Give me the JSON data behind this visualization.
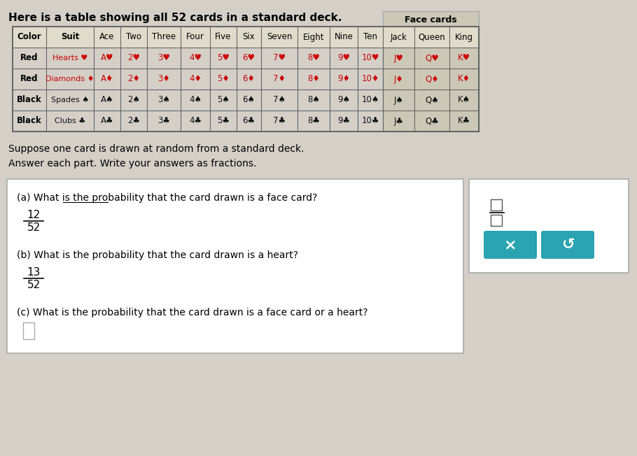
{
  "title": "Here is a table showing all 52 cards in a standard deck.",
  "bg_color": "#d4d0c8",
  "table_bg": "#e8e4dc",
  "face_cards_header": "Face cards",
  "col_header": [
    "Color",
    "Suit",
    "Ace",
    "Two",
    "Three",
    "Four",
    "Five",
    "Six",
    "Seven",
    "Eight",
    "Nine",
    "Ten",
    "Jack",
    "Queen",
    "King"
  ],
  "rows": [
    {
      "color": "Red",
      "suit": "Hearts",
      "suit_symbol": "♥",
      "cards": [
        "A",
        "2",
        "3",
        "4",
        "5",
        "6",
        "7",
        "8",
        "9",
        "10",
        "J",
        "Q",
        "K"
      ],
      "text_color": "#8B0000",
      "face_bg": "#d0c8b8"
    },
    {
      "color": "Red",
      "suit": "Diamonds",
      "suit_symbol": "♦",
      "cards": [
        "A",
        "2",
        "3",
        "4",
        "5",
        "6",
        "7",
        "8",
        "9",
        "10",
        "J",
        "Q",
        "K"
      ],
      "text_color": "#8B0000",
      "face_bg": "#d0c8b8"
    },
    {
      "color": "Black",
      "suit": "Spades",
      "suit_symbol": "♠",
      "cards": [
        "A",
        "2",
        "3",
        "4",
        "5",
        "6",
        "7",
        "8",
        "9",
        "10",
        "J",
        "Q",
        "K"
      ],
      "text_color": "#1a1a1a",
      "face_bg": "#d0c8b8"
    },
    {
      "color": "Black",
      "suit": "Clubs",
      "suit_symbol": "♣",
      "cards": [
        "A",
        "2",
        "3",
        "4",
        "5",
        "6",
        "7",
        "8",
        "9",
        "10",
        "J",
        "Q",
        "K"
      ],
      "text_color": "#1a1a1a",
      "face_bg": "#d0c8b8"
    }
  ],
  "suppose_text": "Suppose one card is drawn at random from a standard deck.\nAnswer each part. Write your answers as fractions.",
  "qa_box_bg": "white",
  "qa_box_border": "#aaaaaa",
  "part_a_q": "(a) What is the probability that the card drawn is a face card?",
  "part_a_num": "12",
  "part_a_den": "52",
  "part_b_q": "(b) What is the probability that the card drawn is a heart?",
  "part_b_num": "13",
  "part_b_den": "52",
  "part_c_q": "(c) What is the probability that the card drawn is a face card or a heart?",
  "side_box_bg": "white",
  "side_box_border": "#aaaaaa",
  "x_button_color": "#2ba3b0",
  "undo_button_color": "#2ba3b0",
  "fraction_symbol_color": "#333333"
}
